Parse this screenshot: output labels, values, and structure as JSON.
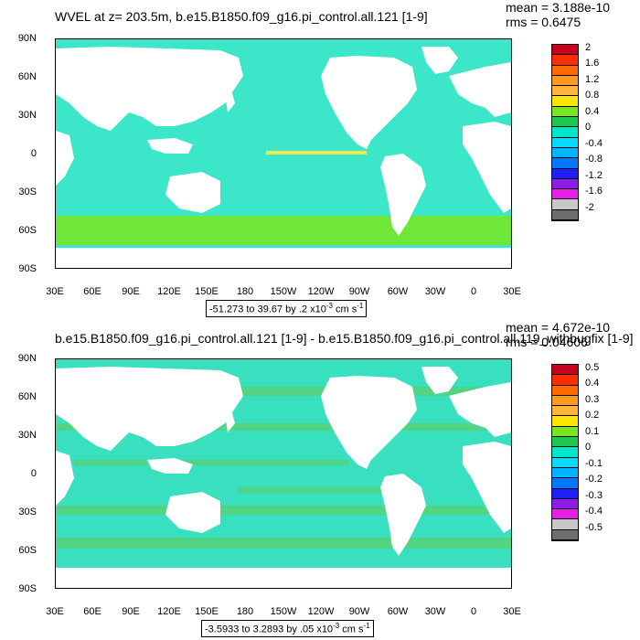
{
  "top": {
    "title": "WVEL at z= 203.5m, b.e15.B1850.f09_g16.pi_control.all.121 [1-9]",
    "mean": "mean = 3.188e-10",
    "rms": "rms = 0.6475",
    "range_prefix": "-51.273 to 39.67 by .2 x10",
    "range_exp": "-3",
    "range_suffix": " cm s",
    "range_unit_exp": "-1",
    "legend_labels": [
      "2",
      "1.6",
      "1.2",
      "0.8",
      "0.4",
      "0",
      "-0.4",
      "-0.8",
      "-1.2",
      "-1.6",
      "-2"
    ]
  },
  "bottom": {
    "title": "b.e15.B1850.f09_g16.pi_control.all.121 [1-9] - b.e15.B1850.f09_g16.pi_control.all.119_withbugfix [1-9]",
    "mean": "mean = 4.672e-10",
    "rms": "rms = 0.04606",
    "range_prefix": "-3.5933 to 3.2893 by .05 x10",
    "range_exp": "-3",
    "range_suffix": " cm s",
    "range_unit_exp": "-1",
    "legend_labels": [
      "0.5",
      "0.4",
      "0.3",
      "0.2",
      "0.1",
      "0",
      "-0.1",
      "-0.2",
      "-0.3",
      "-0.4",
      "-0.5"
    ]
  },
  "axes": {
    "lat_labels": [
      "90N",
      "60N",
      "30N",
      "0",
      "30S",
      "60S",
      "90S"
    ],
    "lon_labels": [
      "30E",
      "60E",
      "90E",
      "120E",
      "150E",
      "180",
      "150W",
      "120W",
      "90W",
      "60W",
      "30W",
      "0",
      "30E"
    ]
  },
  "legend_colors": [
    "#c8001e",
    "#ff2d00",
    "#ff6a00",
    "#ff9a1e",
    "#ffb43c",
    "#ffe600",
    "#78e61e",
    "#1ec850",
    "#00e6c8",
    "#00dcff",
    "#00b4ff",
    "#0078ff",
    "#1e1eff",
    "#8c1ee6",
    "#e61ee6",
    "#c8c8c8",
    "#6e6e6e"
  ],
  "colors": {
    "ocean_fill": "#3ce6c8",
    "ocean_fill_bottom": "#38e0c0",
    "equator_band": "#f0e650",
    "diff_green": "#5ad26e",
    "land": "#ffffff"
  }
}
